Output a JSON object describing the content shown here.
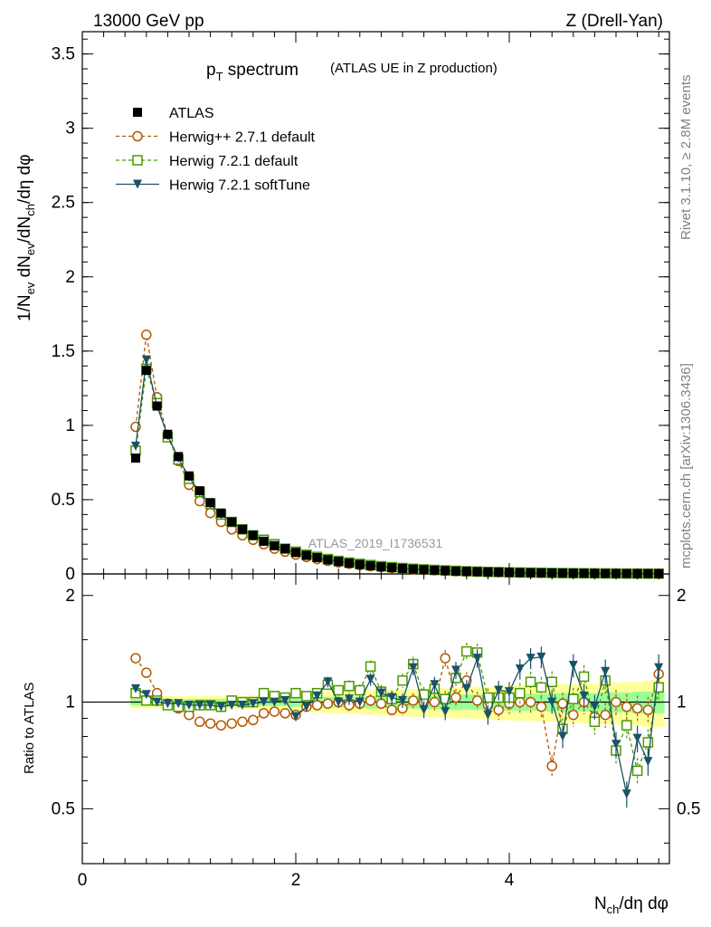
{
  "header": {
    "left": "13000 GeV pp",
    "right": "Z (Drell-Yan)"
  },
  "side": {
    "rivet": "Rivet 3.1.10, ≥ 2.8M events",
    "mcplots": "mcplots.cern.ch [arXiv:1306.3436]"
  },
  "chart_data": {
    "type": "line",
    "title_main": "p",
    "title_sub": "T",
    "title_rest": " spectrum",
    "title_note": "(ATLAS UE in Z production)",
    "analysis_id": "ATLAS_2019_I1736531",
    "ylabel": "1/Nev dNev/dNch/dη dφ",
    "ylabel_parts": [
      "1/N",
      "ev",
      " dN",
      "ev",
      "/dN",
      "ch",
      "/dη dφ"
    ],
    "xlabel_parts": [
      "N",
      "ch",
      "/dη dφ"
    ],
    "ratio_ylabel": "Ratio to ATLAS",
    "xlim": [
      0,
      5.5
    ],
    "ylim": [
      0,
      3.65
    ],
    "ratio_ylim": [
      0.35,
      2.3
    ],
    "x_ticks": [
      "0",
      "2",
      "4"
    ],
    "y_ticks": [
      "0",
      "0.5",
      "1",
      "1.5",
      "2",
      "2.5",
      "3",
      "3.5"
    ],
    "ratio_ticks": [
      "0.5",
      "1",
      "2"
    ],
    "legend": [
      {
        "name": "ATLAS",
        "color": "#000000",
        "marker": "square-filled",
        "dash": false
      },
      {
        "name": "Herwig++ 2.7.1 default",
        "color": "#b35900",
        "marker": "circle-open",
        "dash": true
      },
      {
        "name": "Herwig 7.2.1 default",
        "color": "#4d9900",
        "marker": "square-open",
        "dash": true
      },
      {
        "name": "Herwig 7.2.1 softTune",
        "color": "#1a5266",
        "marker": "triangle-down",
        "dash": false
      }
    ],
    "x": [
      0.5,
      0.6,
      0.7,
      0.8,
      0.9,
      1.0,
      1.1,
      1.2,
      1.3,
      1.4,
      1.5,
      1.6,
      1.7,
      1.8,
      1.9,
      2.0,
      2.1,
      2.2,
      2.3,
      2.4,
      2.5,
      2.6,
      2.7,
      2.8,
      2.9,
      3.0,
      3.1,
      3.2,
      3.3,
      3.4,
      3.5,
      3.6,
      3.7,
      3.8,
      3.9,
      4.0,
      4.1,
      4.2,
      4.3,
      4.4,
      4.5,
      4.6,
      4.7,
      4.8,
      4.9,
      5.0,
      5.1,
      5.2,
      5.3,
      5.4
    ],
    "series": [
      {
        "name": "ATLAS",
        "values": [
          0.78,
          1.37,
          1.13,
          0.94,
          0.79,
          0.66,
          0.56,
          0.48,
          0.41,
          0.35,
          0.3,
          0.26,
          0.22,
          0.19,
          0.17,
          0.145,
          0.125,
          0.11,
          0.095,
          0.083,
          0.072,
          0.063,
          0.055,
          0.048,
          0.042,
          0.037,
          0.032,
          0.028,
          0.025,
          0.022,
          0.019,
          0.017,
          0.015,
          0.013,
          0.012,
          0.01,
          0.009,
          0.008,
          0.007,
          0.0062,
          0.0055,
          0.0048,
          0.0042,
          0.0037,
          0.0033,
          0.0029,
          0.0026,
          0.0023,
          0.002,
          0.0018
        ]
      },
      {
        "name": "Herwig++ 2.7.1 default",
        "values": [
          0.99,
          1.61,
          1.19,
          0.93,
          0.76,
          0.6,
          0.49,
          0.41,
          0.35,
          0.3,
          0.26,
          0.23,
          0.2,
          0.17,
          0.15,
          0.13,
          0.114,
          0.1,
          0.088,
          0.078,
          0.068,
          0.06,
          0.052,
          0.046,
          0.04,
          0.035,
          0.031,
          0.027,
          0.024,
          0.021,
          0.018,
          0.016,
          0.014,
          0.012,
          0.011,
          0.0095,
          0.0085,
          0.0076,
          0.0068,
          0.006,
          0.0053,
          0.0046,
          0.004,
          0.0035,
          0.0031,
          0.0027,
          0.0024,
          0.0021,
          0.0019,
          0.0017
        ]
      },
      {
        "name": "Herwig 7.2.1 default",
        "values": [
          0.83,
          1.38,
          1.15,
          0.92,
          0.77,
          0.64,
          0.55,
          0.47,
          0.4,
          0.35,
          0.3,
          0.26,
          0.23,
          0.2,
          0.17,
          0.15,
          0.13,
          0.115,
          0.1,
          0.088,
          0.077,
          0.068,
          0.06,
          0.052,
          0.046,
          0.04,
          0.035,
          0.031,
          0.027,
          0.024,
          0.021,
          0.018,
          0.016,
          0.014,
          0.013,
          0.011,
          0.01,
          0.009,
          0.008,
          0.007,
          0.006,
          0.0053,
          0.0047,
          0.0041,
          0.0036,
          0.0032,
          0.0028,
          0.0025,
          0.0022,
          0.002
        ]
      },
      {
        "name": "Herwig 7.2.1 softTune",
        "values": [
          0.86,
          1.44,
          1.13,
          0.93,
          0.78,
          0.65,
          0.55,
          0.47,
          0.4,
          0.35,
          0.3,
          0.26,
          0.22,
          0.19,
          0.17,
          0.14,
          0.125,
          0.11,
          0.096,
          0.085,
          0.074,
          0.064,
          0.056,
          0.049,
          0.043,
          0.037,
          0.032,
          0.028,
          0.025,
          0.022,
          0.019,
          0.017,
          0.015,
          0.013,
          0.012,
          0.01,
          0.009,
          0.008,
          0.007,
          0.006,
          0.0055,
          0.0048,
          0.0042,
          0.0037,
          0.0033,
          0.0029,
          0.0026,
          0.0023,
          0.002,
          0.0018
        ]
      }
    ],
    "ratio_series": [
      {
        "name": "Herwig++ 2.7.1 default",
        "values": [
          1.33,
          1.21,
          1.06,
          0.99,
          0.96,
          0.92,
          0.88,
          0.87,
          0.86,
          0.87,
          0.88,
          0.89,
          0.93,
          0.94,
          0.93,
          0.92,
          0.97,
          0.98,
          0.99,
          1.0,
          0.98,
          0.99,
          1.01,
          0.99,
          0.95,
          0.96,
          1.01,
          1.0,
          1.0,
          1.33,
          1.03,
          1.15,
          1.01,
          0.98,
          0.95,
          0.99,
          1.0,
          1.0,
          0.97,
          0.66,
          0.99,
          0.92,
          1.0,
          0.91,
          0.92,
          1.0,
          0.97,
          0.96,
          0.95,
          1.2
        ]
      },
      {
        "name": "Herwig 7.2.1 default",
        "values": [
          1.06,
          1.01,
          1.01,
          0.98,
          0.97,
          0.97,
          0.98,
          0.98,
          0.97,
          1.01,
          1.0,
          1.0,
          1.06,
          1.04,
          1.03,
          1.06,
          1.04,
          1.06,
          1.12,
          1.08,
          1.11,
          1.08,
          1.26,
          1.07,
          1.02,
          1.15,
          1.28,
          1.05,
          1.09,
          1.02,
          1.17,
          1.39,
          1.38,
          1.03,
          1.03,
          1.03,
          1.06,
          1.14,
          1.1,
          1.14,
          0.84,
          1.02,
          1.18,
          0.88,
          1.15,
          0.73,
          0.86,
          0.64,
          0.77,
          1.1
        ]
      },
      {
        "name": "Herwig 7.2.1 softTune",
        "values": [
          1.09,
          1.05,
          1.0,
          0.99,
          0.99,
          0.98,
          0.98,
          0.98,
          0.97,
          0.98,
          0.98,
          0.99,
          1.0,
          1.0,
          1.01,
          0.91,
          0.97,
          1.04,
          1.14,
          1.0,
          1.02,
          1.0,
          1.16,
          1.06,
          1.03,
          1.01,
          1.25,
          0.95,
          1.12,
          0.94,
          1.23,
          1.09,
          1.33,
          0.92,
          1.08,
          1.07,
          1.24,
          1.33,
          1.34,
          1.0,
          0.8,
          1.27,
          1.04,
          0.97,
          1.22,
          0.76,
          0.55,
          0.79,
          0.68,
          1.25
        ]
      }
    ],
    "ratio_bands": {
      "inner_color": "#99ff99",
      "outer_color": "#ffff99",
      "inner_halfwidth": [
        0.02,
        0.02,
        0.02,
        0.02,
        0.02,
        0.02,
        0.02,
        0.02,
        0.02,
        0.02,
        0.02,
        0.02,
        0.025,
        0.025,
        0.025,
        0.03,
        0.03,
        0.03,
        0.035,
        0.035,
        0.035,
        0.035,
        0.04,
        0.04,
        0.04,
        0.04,
        0.04,
        0.045,
        0.045,
        0.045,
        0.05,
        0.05,
        0.05,
        0.05,
        0.05,
        0.055,
        0.055,
        0.055,
        0.055,
        0.06,
        0.06,
        0.06,
        0.06,
        0.06,
        0.065,
        0.065,
        0.065,
        0.07,
        0.07,
        0.07
      ],
      "outer_halfwidth": [
        0.04,
        0.04,
        0.04,
        0.04,
        0.04,
        0.04,
        0.04,
        0.04,
        0.04,
        0.04,
        0.04,
        0.045,
        0.05,
        0.05,
        0.05,
        0.06,
        0.06,
        0.065,
        0.07,
        0.07,
        0.075,
        0.075,
        0.08,
        0.08,
        0.085,
        0.085,
        0.09,
        0.09,
        0.095,
        0.095,
        0.1,
        0.1,
        0.105,
        0.105,
        0.11,
        0.11,
        0.115,
        0.115,
        0.12,
        0.12,
        0.125,
        0.125,
        0.13,
        0.13,
        0.135,
        0.135,
        0.14,
        0.14,
        0.15,
        0.15
      ]
    }
  }
}
